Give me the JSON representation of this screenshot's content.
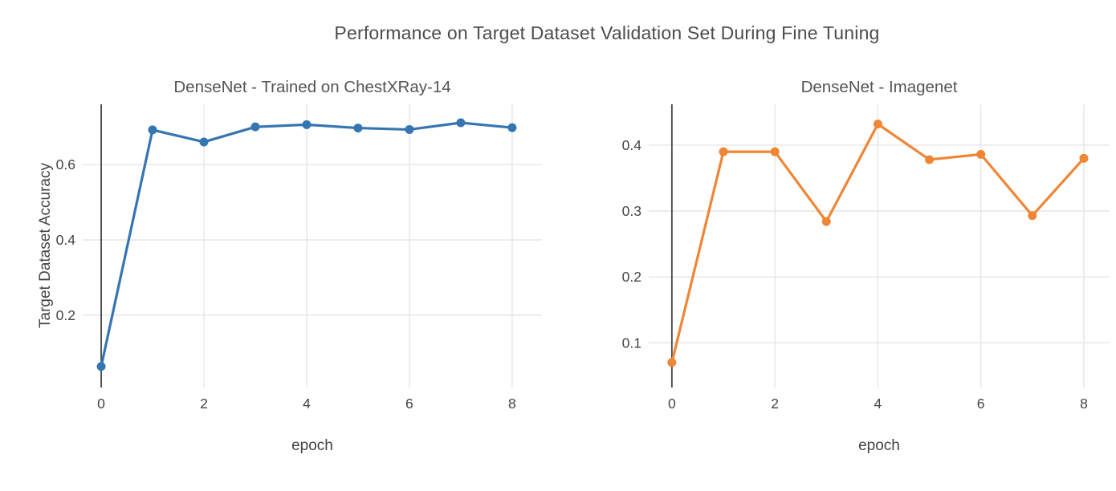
{
  "figure": {
    "title": "Performance on Target Dataset Validation Set During Fine Tuning",
    "background": "#ffffff",
    "gridline_color": "#e6e6e6",
    "zeroline_color": "#444444",
    "text_color": "#444444"
  },
  "chart_data": [
    {
      "type": "line",
      "title": "DenseNet - Trained on ChestXRay-14",
      "xlabel": "epoch",
      "ylabel": "Target Dataset Accuracy",
      "color": "#3575b2",
      "x": [
        0,
        1,
        2,
        3,
        4,
        5,
        6,
        7,
        8
      ],
      "values": [
        0.064,
        0.692,
        0.66,
        0.7,
        0.706,
        0.697,
        0.693,
        0.711,
        0.698
      ],
      "xticks": [
        0,
        2,
        4,
        6,
        8
      ],
      "yticks": [
        0.2,
        0.4,
        0.6
      ],
      "xlim": [
        -0.36,
        8.58
      ],
      "ylim": [
        0.008,
        0.76
      ],
      "grid": true,
      "legend": "none",
      "marker": "circle"
    },
    {
      "type": "line",
      "title": "DenseNet - Imagenet",
      "xlabel": "epoch",
      "ylabel": "",
      "color": "#ef8636",
      "x": [
        0,
        1,
        2,
        3,
        4,
        5,
        6,
        7,
        8
      ],
      "values": [
        0.07,
        0.39,
        0.39,
        0.284,
        0.432,
        0.378,
        0.386,
        0.293,
        0.38
      ],
      "xticks": [
        0,
        2,
        4,
        6,
        8
      ],
      "yticks": [
        0.1,
        0.2,
        0.3,
        0.4
      ],
      "xlim": [
        -0.45,
        8.5
      ],
      "ylim": [
        0.032,
        0.462
      ],
      "grid": true,
      "legend": "none",
      "marker": "circle"
    }
  ]
}
